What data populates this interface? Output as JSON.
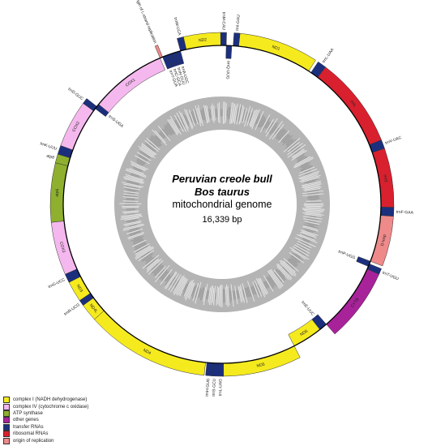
{
  "title": {
    "line1": "Peruvian creole bull",
    "line2": "Bos taurus",
    "line3": "mitochondrial genome",
    "size": "16,339 bp"
  },
  "colors": {
    "complex_I": "#f5ea1e",
    "complex_IV": "#f5b8ee",
    "atp": "#8fb02e",
    "other": "#a8229a",
    "trna": "#1b2f7d",
    "rrna": "#d8202e",
    "ori": "#ef8a8a"
  },
  "legend": [
    {
      "label": "complex I (NADH dehydrogenase)",
      "color_key": "complex_I"
    },
    {
      "label": "complex IV (cytochrome c oxidase)",
      "color_key": "complex_IV"
    },
    {
      "label": "ATP synthase",
      "color_key": "atp"
    },
    {
      "label": "other genes",
      "color_key": "other"
    },
    {
      "label": "transfer RNAs",
      "color_key": "trna"
    },
    {
      "label": "ribosomal RNAs",
      "color_key": "rrna"
    },
    {
      "label": "origin of replication",
      "color_key": "ori"
    }
  ],
  "features": [
    {
      "name": "ND1",
      "start": 5,
      "end": 33,
      "color_key": "complex_I",
      "strand": "outer"
    },
    {
      "name": "trnI-GAU",
      "start": 4,
      "end": 6,
      "color_key": "trna",
      "strand": "outer"
    },
    {
      "name": "trnL-UAA",
      "start": 34,
      "end": 37,
      "color_key": "trna",
      "strand": "outer"
    },
    {
      "name": "rrnL",
      "start": 37,
      "end": 68,
      "color_key": "rrna",
      "strand": "outer"
    },
    {
      "name": "trnV-UAC",
      "start": 68,
      "end": 71,
      "color_key": "trna",
      "strand": "outer"
    },
    {
      "name": "rrnS",
      "start": 71,
      "end": 91,
      "color_key": "rrna",
      "strand": "outer"
    },
    {
      "name": "trnF-GAA",
      "start": 91,
      "end": 94,
      "color_key": "trna",
      "strand": "outer"
    },
    {
      "name": "D-loop",
      "start": 94,
      "end": 111,
      "color_key": "ori",
      "strand": "outer"
    },
    {
      "name": "trnP-UGG",
      "start": 111,
      "end": 113,
      "color_key": "trna",
      "strand": "inner"
    },
    {
      "name": "trnT-UGU",
      "start": 112,
      "end": 114,
      "color_key": "trna",
      "strand": "outer"
    },
    {
      "name": "CYTB",
      "start": 114,
      "end": 139,
      "color_key": "other",
      "strand": "outer"
    },
    {
      "name": "trnE-UUC",
      "start": 139,
      "end": 142,
      "color_key": "trna",
      "strand": "inner"
    },
    {
      "name": "ND6",
      "start": 142,
      "end": 153,
      "color_key": "complex_I",
      "strand": "inner"
    },
    {
      "name": "ND5",
      "start": 153,
      "end": 180,
      "color_key": "complex_I",
      "strand": "outer"
    },
    {
      "name": "trnL-UAG",
      "start": 179.5,
      "end": 181.5,
      "color_key": "trna",
      "strand": "outer"
    },
    {
      "name": "trnS-GCU",
      "start": 181.5,
      "end": 183.5,
      "color_key": "trna",
      "strand": "outer"
    },
    {
      "name": "trnH-GUG",
      "start": 183.5,
      "end": 185.5,
      "color_key": "trna",
      "strand": "outer"
    },
    {
      "name": "ND4",
      "start": 186,
      "end": 228,
      "color_key": "complex_I",
      "strand": "outer"
    },
    {
      "name": "ND4L",
      "start": 228,
      "end": 234,
      "color_key": "complex_I",
      "strand": "outer"
    },
    {
      "name": "trnR-UCG",
      "start": 234,
      "end": 236,
      "color_key": "trna",
      "strand": "outer"
    },
    {
      "name": "ND3",
      "start": 236,
      "end": 243,
      "color_key": "complex_I",
      "strand": "outer"
    },
    {
      "name": "trnG-UCC",
      "start": 243,
      "end": 246,
      "color_key": "trna",
      "strand": "outer"
    },
    {
      "name": "COX3",
      "start": 246,
      "end": 264,
      "color_key": "complex_IV",
      "strand": "outer"
    },
    {
      "name": "atp6",
      "start": 264,
      "end": 284,
      "color_key": "atp",
      "strand": "outer"
    },
    {
      "name": "atp8",
      "start": 284,
      "end": 287,
      "color_key": "atp",
      "strand": "outer"
    },
    {
      "name": "trnK-UUU",
      "start": 287,
      "end": 290,
      "color_key": "trna",
      "strand": "outer"
    },
    {
      "name": "COX2",
      "start": 290,
      "end": 306,
      "color_key": "complex_IV",
      "strand": "outer"
    },
    {
      "name": "trnD-GUC",
      "start": 306,
      "end": 308,
      "color_key": "trna",
      "strand": "outer"
    },
    {
      "name": "trnS-UGA",
      "start": 307,
      "end": 309,
      "color_key": "trna",
      "strand": "inner"
    },
    {
      "name": "COX1",
      "start": 309,
      "end": 337,
      "color_key": "complex_IV",
      "strand": "inner"
    },
    {
      "name": "origin of L-strand replication",
      "start": 337,
      "end": 338,
      "color_key": "ori",
      "strand": "outer"
    },
    {
      "name": "trnY-GUA",
      "start": 338,
      "end": 339.7,
      "color_key": "trna",
      "strand": "inner"
    },
    {
      "name": "trnC-GCA",
      "start": 339.7,
      "end": 341.4,
      "color_key": "trna",
      "strand": "inner"
    },
    {
      "name": "trnN-GUU",
      "start": 341.4,
      "end": 343.1,
      "color_key": "trna",
      "strand": "inner"
    },
    {
      "name": "trnA-UGC",
      "start": 343.1,
      "end": 344.8,
      "color_key": "trna",
      "strand": "inner"
    },
    {
      "name": "trnW-UCA",
      "start": 344.8,
      "end": 347,
      "color_key": "trna",
      "strand": "outer"
    },
    {
      "name": "ND2",
      "start": 347,
      "end": 359.5,
      "color_key": "complex_I",
      "strand": "outer"
    },
    {
      "name": "trnM-CAU",
      "start": 359.5,
      "end": 361.5,
      "color_key": "trna",
      "strand": "outer"
    },
    {
      "name": "trnQ-UUG",
      "start": 361.5,
      "end": 363.5,
      "color_key": "trna",
      "strand": "inner"
    }
  ]
}
